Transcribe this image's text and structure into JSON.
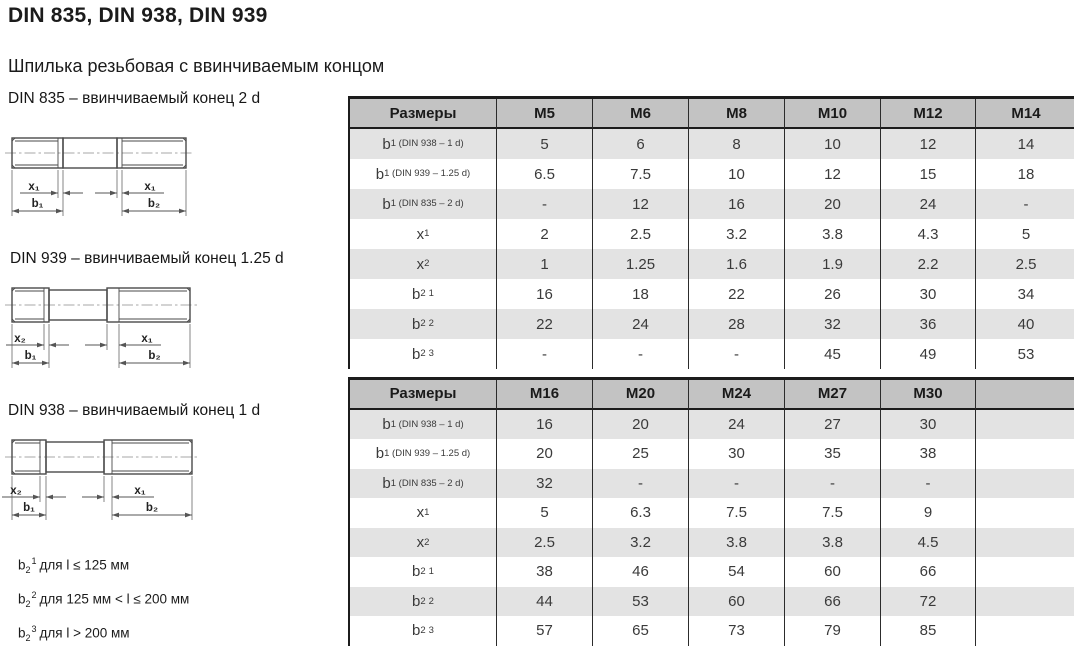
{
  "page": {
    "title": "DIN 835, DIN 938, DIN 939",
    "subtitle": "Шпилька резьбовая с ввинчиваемым концом"
  },
  "colors": {
    "header_bg": "#c3c3c3",
    "row_alt_bg": "#e3e3e3",
    "border": "#1c1c1c",
    "text": "#3a3a3a"
  },
  "drawings": [
    {
      "caption": "DIN 835 – ввинчиваемый конец 2 d",
      "dim_x_left": "x₁",
      "dim_x_right": "x₁",
      "dim_b_left": "b₁",
      "dim_b_right": "b₂"
    },
    {
      "caption": "DIN 939 – ввинчиваемый конец 1.25 d",
      "dim_x_left": "x₂",
      "dim_x_right": "x₁",
      "dim_b_left": "b₁",
      "dim_b_right": "b₂"
    },
    {
      "caption": "DIN 938 – ввинчиваемый конец 1 d",
      "dim_x_left": "x₂",
      "dim_x_right": "x₁",
      "dim_b_left": "b₁",
      "dim_b_right": "b₂"
    }
  ],
  "footnotes": [
    {
      "base": "b",
      "sub": "2",
      "sup": "1",
      "text": "для l ≤ 125 мм"
    },
    {
      "base": "b",
      "sub": "2",
      "sup": "2",
      "text": "для 125 мм < l ≤ 200 мм"
    },
    {
      "base": "b",
      "sub": "2",
      "sup": "3",
      "text": "для l > 200 мм"
    }
  ],
  "tables": [
    {
      "headers": [
        "Размеры",
        "M5",
        "M6",
        "M8",
        "M10",
        "M12",
        "M14"
      ],
      "rows": [
        {
          "label": {
            "base": "b",
            "sub": "1 (DIN 938 – 1 d)"
          },
          "cells": [
            "5",
            "6",
            "8",
            "10",
            "12",
            "14"
          ],
          "shaded": true
        },
        {
          "label": {
            "base": "b",
            "sub": "1 (DIN 939 – 1.25 d)"
          },
          "cells": [
            "6.5",
            "7.5",
            "10",
            "12",
            "15",
            "18"
          ],
          "shaded": false
        },
        {
          "label": {
            "base": "b",
            "sub": "1 (DIN 835 – 2 d)"
          },
          "cells": [
            "-",
            "12",
            "16",
            "20",
            "24",
            "-"
          ],
          "shaded": true
        },
        {
          "label": {
            "base": "x",
            "sub": "1"
          },
          "cells": [
            "2",
            "2.5",
            "3.2",
            "3.8",
            "4.3",
            "5"
          ],
          "shaded": false
        },
        {
          "label": {
            "base": "x",
            "sub": "2"
          },
          "cells": [
            "1",
            "1.25",
            "1.6",
            "1.9",
            "2.2",
            "2.5"
          ],
          "shaded": true
        },
        {
          "label": {
            "base": "b",
            "sub": "2",
            "sup": "1"
          },
          "cells": [
            "16",
            "18",
            "22",
            "26",
            "30",
            "34"
          ],
          "shaded": false
        },
        {
          "label": {
            "base": "b",
            "sub": "2",
            "sup": "2"
          },
          "cells": [
            "22",
            "24",
            "28",
            "32",
            "36",
            "40"
          ],
          "shaded": true
        },
        {
          "label": {
            "base": "b",
            "sub": "2",
            "sup": "3"
          },
          "cells": [
            "-",
            "-",
            "-",
            "45",
            "49",
            "53"
          ],
          "shaded": false
        }
      ]
    },
    {
      "headers": [
        "Размеры",
        "M16",
        "M20",
        "M24",
        "M27",
        "M30",
        ""
      ],
      "rows": [
        {
          "label": {
            "base": "b",
            "sub": "1 (DIN 938 – 1 d)"
          },
          "cells": [
            "16",
            "20",
            "24",
            "27",
            "30",
            ""
          ],
          "shaded": true
        },
        {
          "label": {
            "base": "b",
            "sub": "1 (DIN 939 – 1.25 d)"
          },
          "cells": [
            "20",
            "25",
            "30",
            "35",
            "38",
            ""
          ],
          "shaded": false
        },
        {
          "label": {
            "base": "b",
            "sub": "1 (DIN 835 – 2 d)"
          },
          "cells": [
            "32",
            "-",
            "-",
            "-",
            "-",
            ""
          ],
          "shaded": true
        },
        {
          "label": {
            "base": "x",
            "sub": "1"
          },
          "cells": [
            "5",
            "6.3",
            "7.5",
            "7.5",
            "9",
            ""
          ],
          "shaded": false
        },
        {
          "label": {
            "base": "x",
            "sub": "2"
          },
          "cells": [
            "2.5",
            "3.2",
            "3.8",
            "3.8",
            "4.5",
            ""
          ],
          "shaded": true
        },
        {
          "label": {
            "base": "b",
            "sub": "2",
            "sup": "1"
          },
          "cells": [
            "38",
            "46",
            "54",
            "60",
            "66",
            ""
          ],
          "shaded": false
        },
        {
          "label": {
            "base": "b",
            "sub": "2",
            "sup": "2"
          },
          "cells": [
            "44",
            "53",
            "60",
            "66",
            "72",
            ""
          ],
          "shaded": true
        },
        {
          "label": {
            "base": "b",
            "sub": "2",
            "sup": "3"
          },
          "cells": [
            "57",
            "65",
            "73",
            "79",
            "85",
            ""
          ],
          "shaded": false
        }
      ]
    }
  ]
}
